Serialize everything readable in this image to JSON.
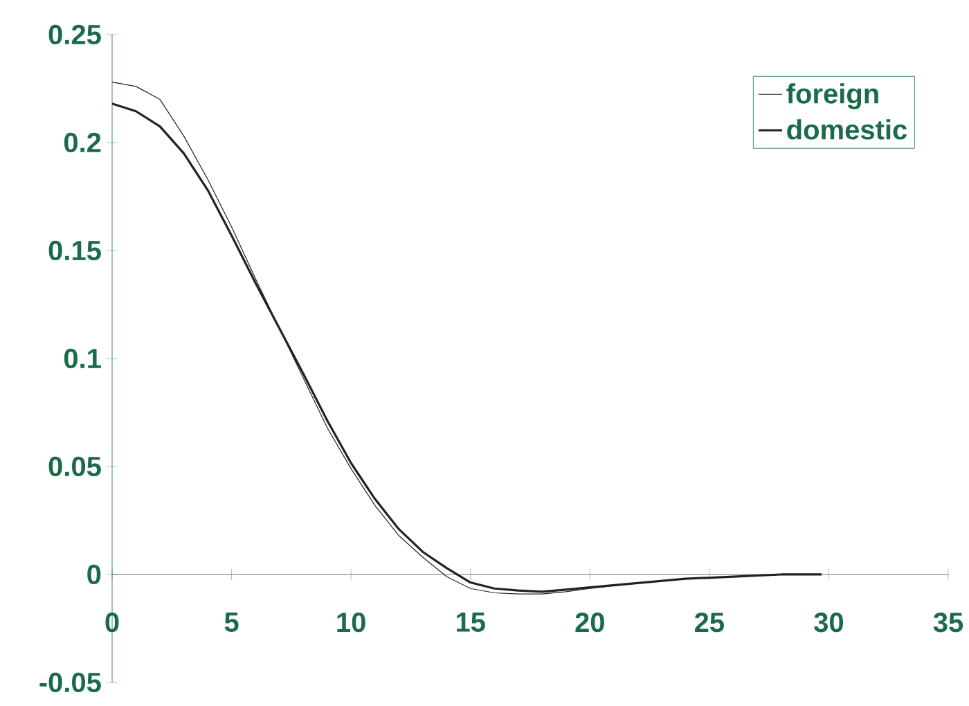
{
  "chart_data": {
    "type": "line",
    "xlim": [
      0,
      35
    ],
    "ylim": [
      -0.05,
      0.25
    ],
    "xticks": [
      0,
      5,
      10,
      15,
      20,
      25,
      30,
      35
    ],
    "yticks": [
      -0.05,
      0,
      0.05,
      0.1,
      0.15,
      0.2,
      0.25
    ],
    "grid": false,
    "legend": "top right",
    "marker": "none",
    "line_style": "solid",
    "series": [
      {
        "name": "foreign",
        "color": "#222222",
        "x": [
          0,
          1,
          2,
          3,
          4,
          5,
          6,
          7,
          8,
          9,
          10,
          11,
          12,
          13,
          14,
          15,
          16,
          17,
          18,
          19,
          20,
          22,
          24,
          26,
          28,
          29.7
        ],
        "values": [
          0.228,
          0.226,
          0.22,
          0.203,
          0.183,
          0.161,
          0.137,
          0.114,
          0.091,
          0.068,
          0.049,
          0.032,
          0.018,
          0.008,
          -0.001,
          -0.0065,
          -0.0085,
          -0.009,
          -0.009,
          -0.008,
          -0.0065,
          -0.004,
          -0.002,
          -0.001,
          0,
          0
        ]
      },
      {
        "name": "domestic",
        "color": "#222222",
        "x": [
          0,
          1,
          2,
          3,
          4,
          5,
          6,
          7,
          8,
          9,
          10,
          11,
          12,
          13,
          14,
          15,
          16,
          17,
          18,
          19,
          20,
          22,
          24,
          26,
          28,
          29.7
        ],
        "values": [
          0.218,
          0.2145,
          0.2075,
          0.195,
          0.178,
          0.157,
          0.135,
          0.114,
          0.093,
          0.0714,
          0.0516,
          0.035,
          0.021,
          0.0105,
          0.003,
          -0.0037,
          -0.0065,
          -0.0074,
          -0.008,
          -0.007,
          -0.006,
          -0.004,
          -0.002,
          -0.001,
          0,
          0
        ]
      }
    ]
  }
}
